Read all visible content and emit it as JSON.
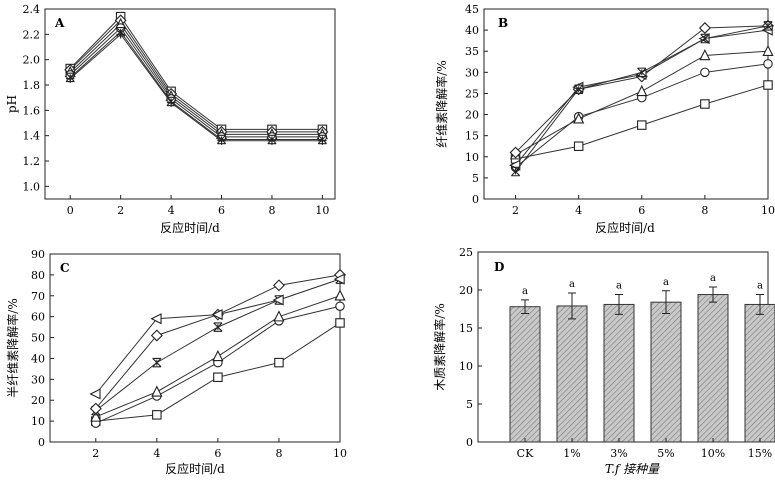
{
  "chart_data": [
    {
      "panel": "A",
      "type": "line",
      "xlabel": "反应时间/d",
      "ylabel": "pH",
      "x": [
        0,
        2,
        4,
        6,
        8,
        10
      ],
      "xticks": [
        "0",
        "2",
        "4",
        "6",
        "8",
        "10"
      ],
      "yticks": [
        "1.0",
        "1.2",
        "1.4",
        "1.6",
        "1.8",
        "2.0",
        "2.2",
        "2.4"
      ],
      "xlim": [
        -1,
        10.5
      ],
      "ylim": [
        0.9,
        2.4
      ],
      "series": [
        {
          "marker": "square",
          "values": [
            1.93,
            2.34,
            1.75,
            1.45,
            1.45,
            1.45
          ]
        },
        {
          "marker": "diamond",
          "values": [
            1.92,
            2.31,
            1.73,
            1.43,
            1.43,
            1.43
          ]
        },
        {
          "marker": "triangle",
          "values": [
            1.9,
            2.28,
            1.71,
            1.41,
            1.41,
            1.41
          ]
        },
        {
          "marker": "circle",
          "values": [
            1.88,
            2.25,
            1.69,
            1.39,
            1.39,
            1.39
          ]
        },
        {
          "marker": "x",
          "values": [
            1.86,
            2.22,
            1.67,
            1.37,
            1.37,
            1.37
          ]
        },
        {
          "marker": "plus",
          "values": [
            1.85,
            2.2,
            1.66,
            1.36,
            1.36,
            1.36
          ]
        }
      ]
    },
    {
      "panel": "B",
      "type": "line",
      "xlabel": "反应时间/d",
      "ylabel": "纤维素降解率/%",
      "x": [
        2,
        4,
        6,
        8,
        10
      ],
      "xticks": [
        "2",
        "4",
        "6",
        "8",
        "10"
      ],
      "yticks": [
        "0",
        "5",
        "10",
        "15",
        "20",
        "25",
        "30",
        "35",
        "40",
        "45"
      ],
      "xlim": [
        1,
        10
      ],
      "ylim": [
        0,
        45
      ],
      "series": [
        {
          "marker": "square",
          "values": [
            9.5,
            12.5,
            17.5,
            22.5,
            27
          ]
        },
        {
          "marker": "circle",
          "values": [
            7.5,
            19.5,
            24,
            30,
            32
          ]
        },
        {
          "marker": "triangle",
          "values": [
            10.5,
            19,
            25.5,
            34,
            35
          ]
        },
        {
          "marker": "diamond",
          "values": [
            11,
            26,
            29,
            40.5,
            41
          ]
        },
        {
          "marker": "triangle-left",
          "values": [
            8,
            26.5,
            29.5,
            38,
            40
          ]
        },
        {
          "marker": "x",
          "values": [
            6.5,
            26,
            30,
            38,
            41
          ]
        }
      ]
    },
    {
      "panel": "C",
      "type": "line",
      "xlabel": "反应时间/d",
      "ylabel": "半纤维素降解率/%",
      "x": [
        2,
        4,
        6,
        8,
        10
      ],
      "xticks": [
        "2",
        "4",
        "6",
        "8",
        "10"
      ],
      "yticks": [
        "0",
        "10",
        "20",
        "30",
        "40",
        "50",
        "60",
        "70",
        "80",
        "90"
      ],
      "xlim": [
        0.5,
        10
      ],
      "ylim": [
        0,
        90
      ],
      "series": [
        {
          "marker": "square",
          "values": [
            10,
            13,
            31,
            38,
            57
          ]
        },
        {
          "marker": "circle",
          "values": [
            9,
            22,
            38,
            58,
            65
          ]
        },
        {
          "marker": "triangle",
          "values": [
            12,
            24,
            41,
            60,
            70
          ]
        },
        {
          "marker": "x",
          "values": [
            15,
            38,
            55,
            68,
            78
          ]
        },
        {
          "marker": "diamond",
          "values": [
            16,
            51,
            61,
            75,
            80
          ]
        },
        {
          "marker": "triangle-left",
          "values": [
            23,
            59,
            61,
            68,
            78
          ]
        }
      ]
    },
    {
      "panel": "D",
      "type": "bar",
      "xlabel": "T.f 接种量",
      "ylabel": "木质素降解率/%",
      "categories": [
        "CK",
        "1%",
        "3%",
        "5%",
        "10%",
        "15%"
      ],
      "values": [
        17.8,
        17.9,
        18.1,
        18.4,
        19.4,
        18.1
      ],
      "errors": [
        0.9,
        1.7,
        1.3,
        1.5,
        1.0,
        1.3
      ],
      "significance": [
        "a",
        "a",
        "a",
        "a",
        "a",
        "a"
      ],
      "yticks": [
        "0",
        "5",
        "10",
        "15",
        "20",
        "25"
      ],
      "ylim": [
        0,
        25
      ]
    }
  ]
}
